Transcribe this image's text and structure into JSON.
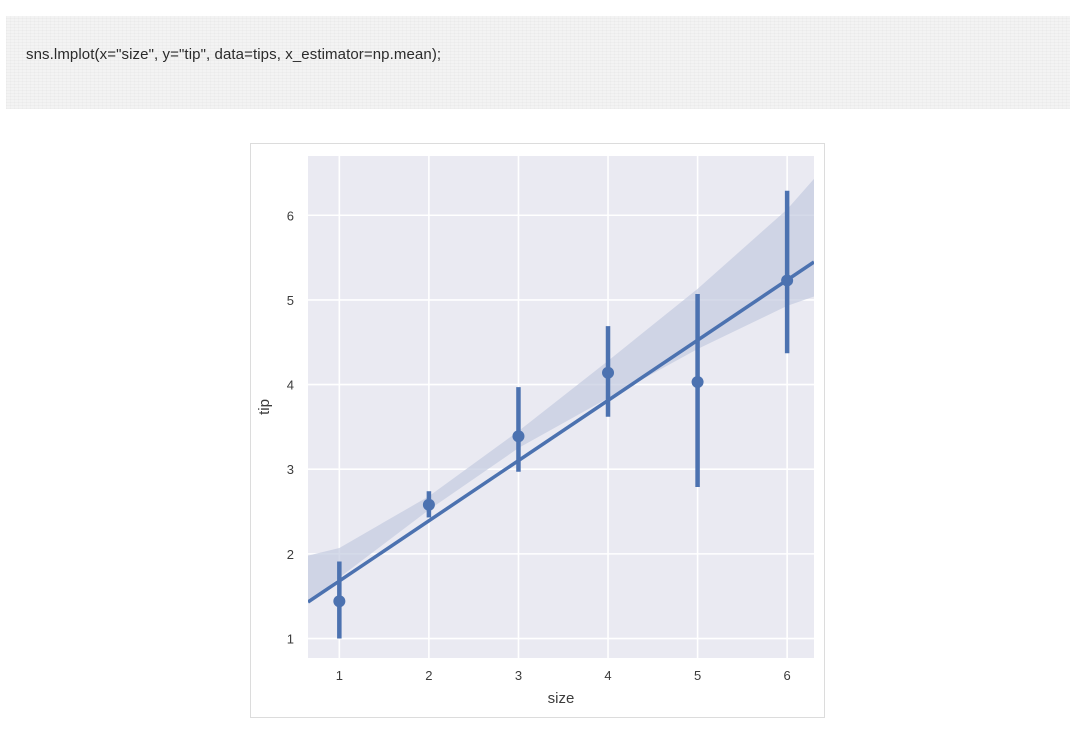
{
  "code": {
    "text": "sns.lmplot(x=\"size\", y=\"tip\", data=tips, x_estimator=np.mean);"
  },
  "chart_data": {
    "type": "scatter",
    "style": "seaborn-darkgrid",
    "title": "",
    "xlabel": "size",
    "ylabel": "tip",
    "xlim": [
      0.65,
      6.3
    ],
    "ylim": [
      0.77,
      6.7
    ],
    "xticks": [
      1,
      2,
      3,
      4,
      5,
      6
    ],
    "yticks": [
      1,
      2,
      3,
      4,
      5,
      6
    ],
    "grid": true,
    "colors": {
      "series": "#4c72b0",
      "ci_band": "#c3cbe0",
      "plot_background": "#eaeaf2",
      "grid": "#ffffff"
    },
    "points": [
      {
        "x": 1,
        "y": 1.44,
        "ci": [
          1.0,
          1.91
        ]
      },
      {
        "x": 2,
        "y": 2.58,
        "ci": [
          2.43,
          2.74
        ]
      },
      {
        "x": 3,
        "y": 3.39,
        "ci": [
          2.97,
          3.97
        ]
      },
      {
        "x": 4,
        "y": 4.14,
        "ci": [
          3.62,
          4.69
        ]
      },
      {
        "x": 5,
        "y": 4.03,
        "ci": [
          2.79,
          5.07
        ]
      },
      {
        "x": 6,
        "y": 5.23,
        "ci": [
          4.37,
          6.29
        ]
      }
    ],
    "regression": {
      "intercept": 0.969,
      "slope": 0.711,
      "ci_band": [
        {
          "x": 0.65,
          "lower": 1.42,
          "upper": 1.98
        },
        {
          "x": 1.0,
          "lower": 1.72,
          "upper": 2.07
        },
        {
          "x": 2.0,
          "lower": 2.52,
          "upper": 2.68
        },
        {
          "x": 3.0,
          "lower": 3.25,
          "upper": 3.45
        },
        {
          "x": 4.0,
          "lower": 3.84,
          "upper": 4.28
        },
        {
          "x": 5.0,
          "lower": 4.42,
          "upper": 5.13
        },
        {
          "x": 6.0,
          "lower": 4.93,
          "upper": 6.07
        },
        {
          "x": 6.3,
          "lower": 5.04,
          "upper": 6.43
        }
      ]
    }
  }
}
